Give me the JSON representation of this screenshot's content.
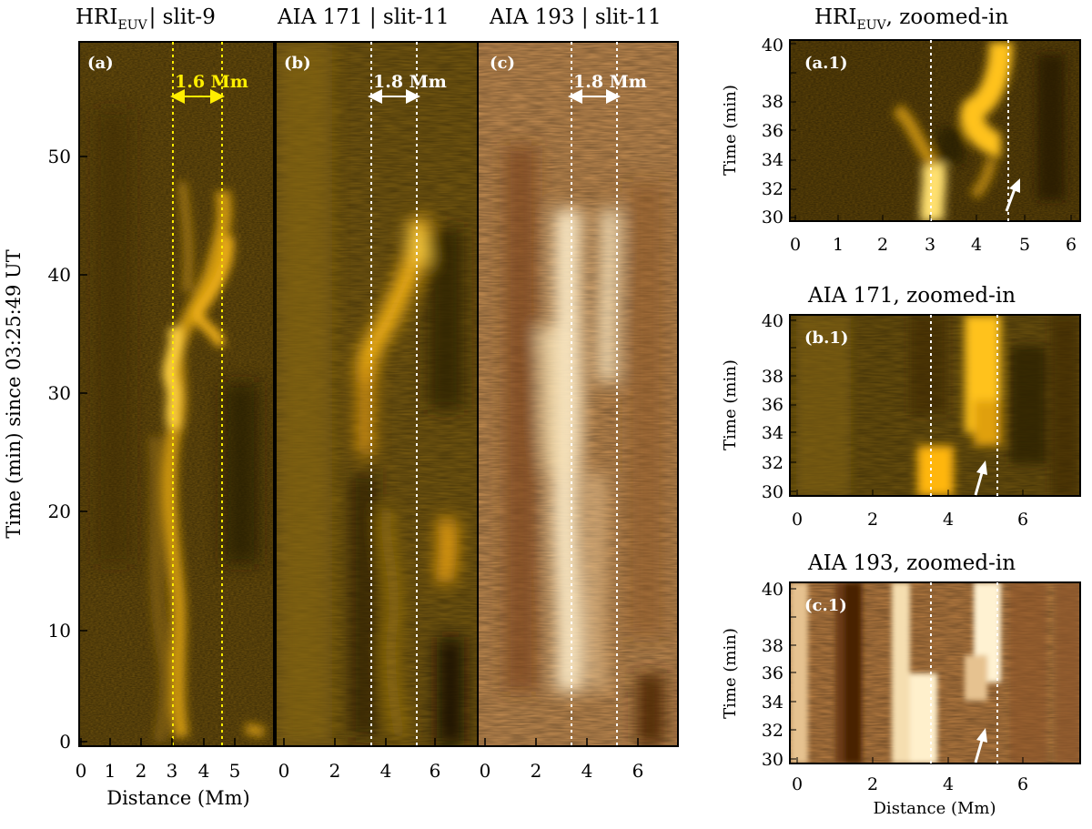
{
  "figure": {
    "colors": {
      "hri_dark": "#3a2b05",
      "hri_mid": "#7a5a0c",
      "hri_bright": "#ffc21a",
      "aia171_dark": "#2e2206",
      "aia171_mid": "#6e520f",
      "aia171_bright": "#ffb60a",
      "aia193_dark": "#6a3a12",
      "aia193_mid": "#b47a40",
      "aia193_bright": "#fff2d2",
      "scale_hri": "#ffee00",
      "scale_aia": "#ffffff"
    },
    "main": {
      "ylabel": "Time (min) since 03:25:49 UT",
      "xlabel": "Distance (Mm)",
      "yticks": [
        "0",
        "10",
        "20",
        "30",
        "40",
        "50"
      ],
      "panels": [
        {
          "title_main": "HRI",
          "title_sub": "EUV",
          "title_rest": "| slit-9",
          "label": "(a)",
          "scale_text": "1.6 Mm",
          "xticks": [
            "0",
            "1",
            "2",
            "3",
            "4",
            "5"
          ]
        },
        {
          "title": "AIA 171 | slit-11",
          "label": "(b)",
          "scale_text": "1.8 Mm",
          "xticks": [
            "0",
            "2",
            "4",
            "6"
          ]
        },
        {
          "title": "AIA 193 | slit-11",
          "label": "(c)",
          "scale_text": "1.8 Mm",
          "xticks": [
            "0",
            "2",
            "4",
            "6"
          ]
        }
      ]
    },
    "zoom": {
      "ylabel": "Time (min)",
      "xlabel": "Distance (Mm)",
      "yticks": [
        "30",
        "32",
        "34",
        "36",
        "38",
        "40"
      ],
      "panels": [
        {
          "title_main": "HRI",
          "title_sub": "EUV",
          "title_rest": ", zoomed-in",
          "label": "(a.1)",
          "xticks": [
            "0",
            "1",
            "2",
            "3",
            "4",
            "5",
            "6"
          ]
        },
        {
          "title": "AIA 171, zoomed-in",
          "label": "(b.1)",
          "xticks": [
            "0",
            "2",
            "4",
            "6"
          ]
        },
        {
          "title": "AIA 193, zoomed-in",
          "label": "(c.1)",
          "xticks": [
            "0",
            "2",
            "4",
            "6"
          ]
        }
      ]
    }
  }
}
